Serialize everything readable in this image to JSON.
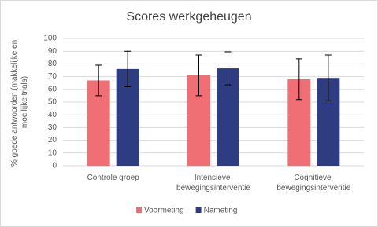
{
  "chart_data": {
    "type": "bar",
    "title": "Scores werkgeheugen",
    "y_label": "% goede antwoorden (makkelijke en moeilijke trials)",
    "categories": [
      "Controle groep",
      "Intensieve bewegingsinterventie",
      "Cognitieve bewegingsinterventie"
    ],
    "series": [
      {
        "name": "Voormeting",
        "color": "#ef6f75",
        "values": [
          67,
          71,
          68
        ],
        "errors": [
          12,
          16,
          16
        ]
      },
      {
        "name": "Nameting",
        "color": "#2e3c82",
        "values": [
          76,
          76.5,
          69
        ],
        "errors": [
          14,
          13,
          18
        ]
      }
    ],
    "ylim": [
      0,
      100
    ],
    "yticks": [
      0,
      10,
      20,
      30,
      40,
      50,
      60,
      70,
      80,
      90,
      100
    ],
    "grid": true,
    "legend": "bottom"
  }
}
